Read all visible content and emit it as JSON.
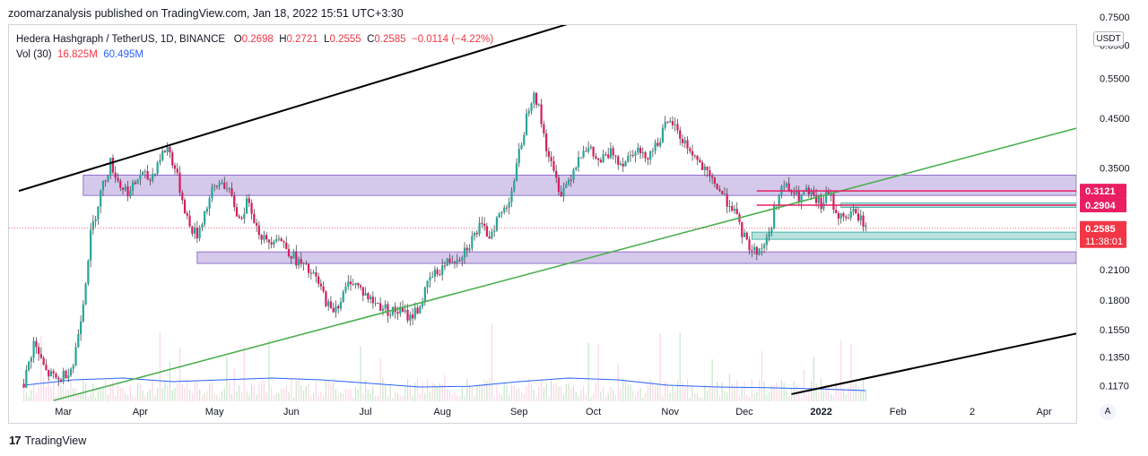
{
  "header": {
    "publisher_text": "zoomarzanalysis published on TradingView.com, Jan 18, 2022 15:51 UTC+3:30"
  },
  "legend": {
    "symbol": "Hedera Hashgraph / TetherUS, 1D, BINANCE",
    "open_label": "O",
    "open": "0.2698",
    "high_label": "H",
    "high": "0.2721",
    "low_label": "L",
    "low": "0.2555",
    "close_label": "C",
    "close": "0.2585",
    "change": "−0.0114 (−4.22%)",
    "vol_label": "Vol (30)",
    "vol_value": "16.825M",
    "vol_ma": "60.495M"
  },
  "axis": {
    "currency": "USDT",
    "auto_label": "A"
  },
  "footer": {
    "brand": "TradingView"
  },
  "colors": {
    "up": "#26a69a",
    "down": "#d81b60",
    "zone_purple": "#b39ddb",
    "zone_teal": "#80cbc4",
    "trend_green": "#4caf50",
    "trend_black": "#000000",
    "price_red": "#f23645",
    "level_pink": "#e91e63",
    "vol_ma_blue": "#2962ff"
  },
  "chart_data": {
    "type": "candlestick",
    "title": "Hedera Hashgraph / TetherUS, 1D, BINANCE",
    "y_scale": "log",
    "ylim": [
      0.108,
      0.72
    ],
    "x_range": [
      "2021-02-13",
      "2022-04-30"
    ],
    "y_ticks": [
      "0.7500",
      "0.6500",
      "0.5500",
      "0.4500",
      "0.3500",
      "0.2100",
      "0.1800",
      "0.1550",
      "0.1350",
      "0.1170"
    ],
    "x_ticks": [
      {
        "label": "Mar",
        "day": 16
      },
      {
        "label": "Apr",
        "day": 47
      },
      {
        "label": "May",
        "day": 77
      },
      {
        "label": "Jun",
        "day": 108
      },
      {
        "label": "Jul",
        "day": 138
      },
      {
        "label": "Aug",
        "day": 169
      },
      {
        "label": "Sep",
        "day": 200
      },
      {
        "label": "Oct",
        "day": 230
      },
      {
        "label": "Nov",
        "day": 261
      },
      {
        "label": "Dec",
        "day": 291
      },
      {
        "label": "2022",
        "day": 322
      },
      {
        "label": "Feb",
        "day": 353
      },
      {
        "label": "2",
        "day": 383
      },
      {
        "label": "Apr",
        "day": 412
      }
    ],
    "price_path": [
      [
        0,
        0.118
      ],
      [
        4,
        0.145
      ],
      [
        9,
        0.125
      ],
      [
        14,
        0.12
      ],
      [
        17,
        0.125
      ],
      [
        20,
        0.13
      ],
      [
        24,
        0.18
      ],
      [
        27,
        0.25
      ],
      [
        31,
        0.31
      ],
      [
        35,
        0.36
      ],
      [
        39,
        0.32
      ],
      [
        43,
        0.31
      ],
      [
        47,
        0.34
      ],
      [
        51,
        0.33
      ],
      [
        55,
        0.37
      ],
      [
        58,
        0.39
      ],
      [
        61,
        0.35
      ],
      [
        64,
        0.3
      ],
      [
        67,
        0.26
      ],
      [
        70,
        0.25
      ],
      [
        73,
        0.28
      ],
      [
        76,
        0.31
      ],
      [
        80,
        0.33
      ],
      [
        84,
        0.3
      ],
      [
        87,
        0.27
      ],
      [
        91,
        0.3
      ],
      [
        94,
        0.26
      ],
      [
        98,
        0.24
      ],
      [
        102,
        0.25
      ],
      [
        106,
        0.235
      ],
      [
        110,
        0.22
      ],
      [
        114,
        0.21
      ],
      [
        118,
        0.2
      ],
      [
        121,
        0.185
      ],
      [
        124,
        0.17
      ],
      [
        128,
        0.18
      ],
      [
        132,
        0.2
      ],
      [
        136,
        0.19
      ],
      [
        140,
        0.18
      ],
      [
        144,
        0.175
      ],
      [
        148,
        0.17
      ],
      [
        152,
        0.17
      ],
      [
        156,
        0.165
      ],
      [
        160,
        0.175
      ],
      [
        164,
        0.2
      ],
      [
        168,
        0.21
      ],
      [
        172,
        0.22
      ],
      [
        176,
        0.225
      ],
      [
        180,
        0.24
      ],
      [
        184,
        0.26
      ],
      [
        188,
        0.25
      ],
      [
        191,
        0.27
      ],
      [
        195,
        0.29
      ],
      [
        198,
        0.33
      ],
      [
        201,
        0.4
      ],
      [
        204,
        0.48
      ],
      [
        206,
        0.52
      ],
      [
        208,
        0.47
      ],
      [
        211,
        0.39
      ],
      [
        214,
        0.34
      ],
      [
        217,
        0.31
      ],
      [
        220,
        0.33
      ],
      [
        223,
        0.36
      ],
      [
        226,
        0.39
      ],
      [
        229,
        0.38
      ],
      [
        232,
        0.36
      ],
      [
        235,
        0.37
      ],
      [
        238,
        0.38
      ],
      [
        241,
        0.36
      ],
      [
        244,
        0.37
      ],
      [
        247,
        0.39
      ],
      [
        250,
        0.37
      ],
      [
        253,
        0.38
      ],
      [
        256,
        0.4
      ],
      [
        259,
        0.43
      ],
      [
        262,
        0.44
      ],
      [
        265,
        0.41
      ],
      [
        268,
        0.39
      ],
      [
        271,
        0.37
      ],
      [
        274,
        0.35
      ],
      [
        277,
        0.33
      ],
      [
        280,
        0.32
      ],
      [
        283,
        0.3
      ],
      [
        286,
        0.29
      ],
      [
        289,
        0.26
      ],
      [
        292,
        0.24
      ],
      [
        295,
        0.23
      ],
      [
        298,
        0.235
      ],
      [
        301,
        0.25
      ],
      [
        304,
        0.3
      ],
      [
        307,
        0.32
      ],
      [
        310,
        0.31
      ],
      [
        313,
        0.3
      ],
      [
        316,
        0.31
      ],
      [
        319,
        0.3
      ],
      [
        322,
        0.29
      ],
      [
        325,
        0.31
      ],
      [
        328,
        0.28
      ],
      [
        331,
        0.27
      ],
      [
        334,
        0.28
      ],
      [
        337,
        0.275
      ],
      [
        340,
        0.26
      ]
    ],
    "trend_lines": [
      {
        "name": "upper-black",
        "points": [
          [
            -2,
            0.312
          ],
          [
            262,
            0.85
          ]
        ]
      },
      {
        "name": "lower-black",
        "points": [
          [
            310,
            0.112
          ],
          [
            425,
            0.152
          ]
        ]
      },
      {
        "name": "green-support",
        "points": [
          [
            12,
            0.1085
          ],
          [
            425,
            0.428
          ]
        ]
      }
    ],
    "zones": [
      {
        "name": "purple-upper",
        "from_day": 24,
        "to_day": 425,
        "low": 0.305,
        "high": 0.338
      },
      {
        "name": "purple-lower",
        "from_day": 70,
        "to_day": 425,
        "low": 0.2165,
        "high": 0.2295
      },
      {
        "name": "teal-support",
        "from_day": 294,
        "to_day": 425,
        "low": 0.2445,
        "high": 0.2535
      },
      {
        "name": "teal-upper",
        "from_day": 330,
        "to_day": 425,
        "low": 0.2872,
        "high": 0.2935
      }
    ],
    "levels": [
      {
        "name": "level-03121",
        "value": 0.3121,
        "from_day": 296,
        "label": "0.3121"
      },
      {
        "name": "level-02904",
        "value": 0.2904,
        "from_day": 296,
        "label": "0.2904"
      }
    ],
    "last_price": {
      "value": 0.2585,
      "label": "0.2585",
      "countdown": "11:38:01"
    },
    "volume_series": "Vol (30)",
    "volume_ma_path": [
      [
        0,
        0.25
      ],
      [
        20,
        0.4
      ],
      [
        40,
        0.45
      ],
      [
        60,
        0.35
      ],
      [
        80,
        0.4
      ],
      [
        100,
        0.45
      ],
      [
        120,
        0.4
      ],
      [
        140,
        0.3
      ],
      [
        160,
        0.2
      ],
      [
        180,
        0.22
      ],
      [
        200,
        0.35
      ],
      [
        220,
        0.45
      ],
      [
        240,
        0.4
      ],
      [
        260,
        0.25
      ],
      [
        280,
        0.2
      ],
      [
        300,
        0.18
      ],
      [
        320,
        0.15
      ],
      [
        340,
        0.1
      ]
    ]
  }
}
